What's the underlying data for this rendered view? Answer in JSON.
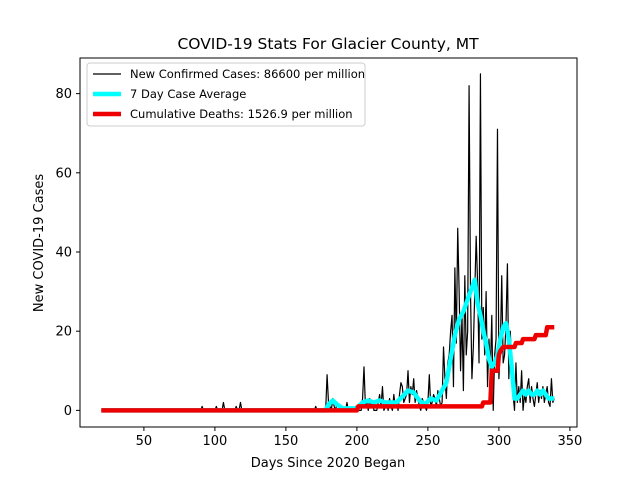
{
  "chart_data": {
    "type": "line",
    "title": "COVID-19 Stats For Glacier County, MT",
    "xlabel": "Days Since 2020 Began",
    "ylabel": "New COVID-19 Cases",
    "xlim": [
      5,
      355
    ],
    "ylim": [
      -4.2,
      89
    ],
    "xticks": [
      50,
      100,
      150,
      200,
      250,
      300,
      350
    ],
    "yticks": [
      0,
      20,
      40,
      60,
      80
    ],
    "grid": false,
    "legend_position": "top-left",
    "series": [
      {
        "name": "New Confirmed Cases: 86600 per million",
        "color": "#000000",
        "points": [
          [
            20,
            0
          ],
          [
            90,
            0
          ],
          [
            91,
            1
          ],
          [
            92,
            0
          ],
          [
            100,
            0
          ],
          [
            101,
            1
          ],
          [
            102,
            0
          ],
          [
            105,
            0
          ],
          [
            106,
            2
          ],
          [
            107,
            0
          ],
          [
            114,
            0
          ],
          [
            115,
            1
          ],
          [
            116,
            0
          ],
          [
            117,
            0
          ],
          [
            118,
            2
          ],
          [
            119,
            0
          ],
          [
            120,
            0
          ],
          [
            130,
            0
          ],
          [
            170,
            0
          ],
          [
            171,
            1
          ],
          [
            172,
            0
          ],
          [
            177,
            0
          ],
          [
            178,
            0
          ],
          [
            179,
            9
          ],
          [
            180,
            2
          ],
          [
            181,
            1
          ],
          [
            182,
            0
          ],
          [
            183,
            3
          ],
          [
            184,
            1
          ],
          [
            185,
            0
          ],
          [
            186,
            2
          ],
          [
            187,
            1
          ],
          [
            188,
            0
          ],
          [
            189,
            1
          ],
          [
            190,
            0
          ],
          [
            192,
            0
          ],
          [
            193,
            2
          ],
          [
            194,
            0
          ],
          [
            198,
            0
          ],
          [
            199,
            1
          ],
          [
            200,
            0
          ],
          [
            203,
            0
          ],
          [
            204,
            3
          ],
          [
            205,
            11
          ],
          [
            206,
            1
          ],
          [
            207,
            2
          ],
          [
            208,
            0
          ],
          [
            209,
            3
          ],
          [
            210,
            1
          ],
          [
            211,
            2
          ],
          [
            212,
            0
          ],
          [
            214,
            0
          ],
          [
            215,
            2
          ],
          [
            216,
            4
          ],
          [
            217,
            1
          ],
          [
            218,
            6
          ],
          [
            219,
            0
          ],
          [
            220,
            1
          ],
          [
            221,
            2
          ],
          [
            222,
            0
          ],
          [
            223,
            3
          ],
          [
            224,
            1
          ],
          [
            225,
            0
          ],
          [
            226,
            4
          ],
          [
            227,
            1
          ],
          [
            228,
            2
          ],
          [
            229,
            0
          ],
          [
            230,
            4
          ],
          [
            231,
            7
          ],
          [
            232,
            6
          ],
          [
            233,
            2
          ],
          [
            234,
            3
          ],
          [
            235,
            4
          ],
          [
            236,
            10
          ],
          [
            237,
            2
          ],
          [
            238,
            6
          ],
          [
            239,
            4
          ],
          [
            240,
            8
          ],
          [
            241,
            2
          ],
          [
            242,
            5
          ],
          [
            243,
            3
          ],
          [
            244,
            1
          ],
          [
            245,
            0
          ],
          [
            246,
            3
          ],
          [
            247,
            2
          ],
          [
            248,
            1
          ],
          [
            249,
            0
          ],
          [
            250,
            2
          ],
          [
            251,
            9
          ],
          [
            252,
            1
          ],
          [
            253,
            2
          ],
          [
            254,
            4
          ],
          [
            255,
            3
          ],
          [
            256,
            1
          ],
          [
            257,
            5
          ],
          [
            258,
            3
          ],
          [
            259,
            1
          ],
          [
            260,
            2
          ],
          [
            261,
            16
          ],
          [
            262,
            8
          ],
          [
            263,
            3
          ],
          [
            264,
            12
          ],
          [
            265,
            14
          ],
          [
            266,
            20
          ],
          [
            267,
            24
          ],
          [
            268,
            6
          ],
          [
            269,
            36
          ],
          [
            270,
            17
          ],
          [
            271,
            46
          ],
          [
            272,
            30
          ],
          [
            273,
            10
          ],
          [
            274,
            24
          ],
          [
            275,
            5
          ],
          [
            276,
            34
          ],
          [
            277,
            14
          ],
          [
            278,
            20
          ],
          [
            279,
            82
          ],
          [
            280,
            30
          ],
          [
            281,
            8
          ],
          [
            282,
            16
          ],
          [
            283,
            30
          ],
          [
            284,
            44
          ],
          [
            285,
            32
          ],
          [
            286,
            12
          ],
          [
            287,
            85
          ],
          [
            288,
            18
          ],
          [
            289,
            26
          ],
          [
            290,
            14
          ],
          [
            291,
            30
          ],
          [
            292,
            6
          ],
          [
            293,
            18
          ],
          [
            294,
            10
          ],
          [
            295,
            24
          ],
          [
            296,
            0
          ],
          [
            297,
            14
          ],
          [
            298,
            18
          ],
          [
            299,
            71
          ],
          [
            300,
            8
          ],
          [
            301,
            16
          ],
          [
            302,
            34
          ],
          [
            303,
            12
          ],
          [
            304,
            14
          ],
          [
            305,
            22
          ],
          [
            306,
            37
          ],
          [
            307,
            8
          ],
          [
            308,
            20
          ],
          [
            309,
            12
          ],
          [
            310,
            4
          ],
          [
            311,
            0
          ],
          [
            312,
            12
          ],
          [
            313,
            2
          ],
          [
            314,
            6
          ],
          [
            315,
            2
          ],
          [
            316,
            10
          ],
          [
            317,
            0
          ],
          [
            318,
            4
          ],
          [
            319,
            2
          ],
          [
            320,
            6
          ],
          [
            321,
            8
          ],
          [
            322,
            2
          ],
          [
            323,
            6
          ],
          [
            324,
            3
          ],
          [
            325,
            1
          ],
          [
            326,
            4
          ],
          [
            327,
            7
          ],
          [
            328,
            2
          ],
          [
            329,
            5
          ],
          [
            330,
            3
          ],
          [
            331,
            6
          ],
          [
            332,
            2
          ],
          [
            333,
            4
          ],
          [
            334,
            6
          ],
          [
            335,
            2
          ],
          [
            336,
            1
          ],
          [
            337,
            8
          ],
          [
            338,
            2
          ],
          [
            339,
            3
          ]
        ]
      },
      {
        "name": "7 Day Case Average",
        "color": "#00ffff",
        "points": [
          [
            20,
            0
          ],
          [
            172,
            0
          ],
          [
            178,
            0
          ],
          [
            180,
            1.5
          ],
          [
            183,
            2.5
          ],
          [
            186,
            1.5
          ],
          [
            190,
            0.5
          ],
          [
            195,
            0.5
          ],
          [
            200,
            0.5
          ],
          [
            204,
            2
          ],
          [
            208,
            2.5
          ],
          [
            212,
            2
          ],
          [
            216,
            2.5
          ],
          [
            220,
            2
          ],
          [
            224,
            2
          ],
          [
            228,
            2
          ],
          [
            232,
            3.5
          ],
          [
            236,
            5
          ],
          [
            240,
            4.5
          ],
          [
            244,
            2.5
          ],
          [
            248,
            1.5
          ],
          [
            252,
            3
          ],
          [
            256,
            2.5
          ],
          [
            260,
            5
          ],
          [
            263,
            7
          ],
          [
            266,
            13
          ],
          [
            269,
            19
          ],
          [
            272,
            23
          ],
          [
            275,
            25
          ],
          [
            278,
            28
          ],
          [
            281,
            31
          ],
          [
            283,
            33
          ],
          [
            285,
            27
          ],
          [
            287,
            24
          ],
          [
            289,
            20
          ],
          [
            291,
            17
          ],
          [
            293,
            13
          ],
          [
            295,
            11
          ],
          [
            297,
            12
          ],
          [
            299,
            14
          ],
          [
            301,
            18
          ],
          [
            303,
            21
          ],
          [
            305,
            22
          ],
          [
            307,
            18
          ],
          [
            309,
            11
          ],
          [
            311,
            3
          ],
          [
            313,
            3
          ],
          [
            315,
            4
          ],
          [
            317,
            5
          ],
          [
            319,
            4
          ],
          [
            321,
            5
          ],
          [
            323,
            4
          ],
          [
            325,
            4
          ],
          [
            327,
            5
          ],
          [
            329,
            4
          ],
          [
            331,
            5
          ],
          [
            333,
            4
          ],
          [
            335,
            3
          ],
          [
            337,
            3
          ],
          [
            339,
            3
          ]
        ]
      },
      {
        "name": "Cumulative Deaths: 1526.9 per million",
        "color": "#ee0000",
        "points": [
          [
            20,
            0
          ],
          [
            200,
            0
          ],
          [
            201,
            1
          ],
          [
            288,
            1
          ],
          [
            289,
            2
          ],
          [
            294,
            2
          ],
          [
            295,
            10
          ],
          [
            299,
            10
          ],
          [
            300,
            14
          ],
          [
            301,
            15
          ],
          [
            303,
            16
          ],
          [
            311,
            16
          ],
          [
            312,
            17
          ],
          [
            316,
            17
          ],
          [
            317,
            18
          ],
          [
            325,
            18
          ],
          [
            326,
            19
          ],
          [
            333,
            19
          ],
          [
            334,
            21
          ],
          [
            339,
            21
          ]
        ]
      }
    ]
  }
}
